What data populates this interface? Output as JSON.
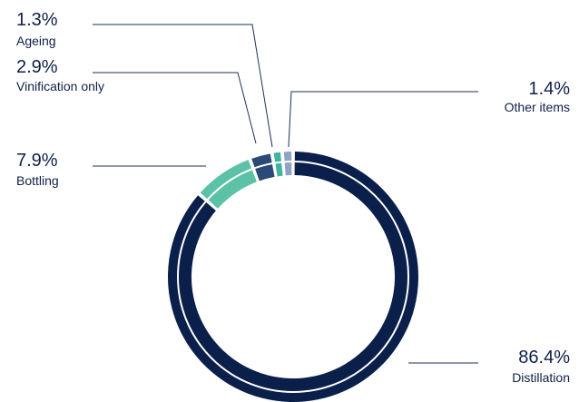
{
  "chart_data": {
    "type": "donut",
    "title": "",
    "series": [
      {
        "label": "Distillation",
        "value": 86.4,
        "display": "86.4%",
        "color": "#0b1f4b"
      },
      {
        "label": "Bottling",
        "value": 7.9,
        "display": "7.9%",
        "color": "#5bc2a7"
      },
      {
        "label": "Vinification only",
        "value": 2.9,
        "display": "2.9%",
        "color": "#2c4a77"
      },
      {
        "label": "Ageing",
        "value": 1.3,
        "display": "1.3%",
        "color": "#3fb5a0"
      },
      {
        "label": "Other items",
        "value": 1.4,
        "display": "1.4%",
        "color": "#8fa3c6"
      }
    ]
  }
}
